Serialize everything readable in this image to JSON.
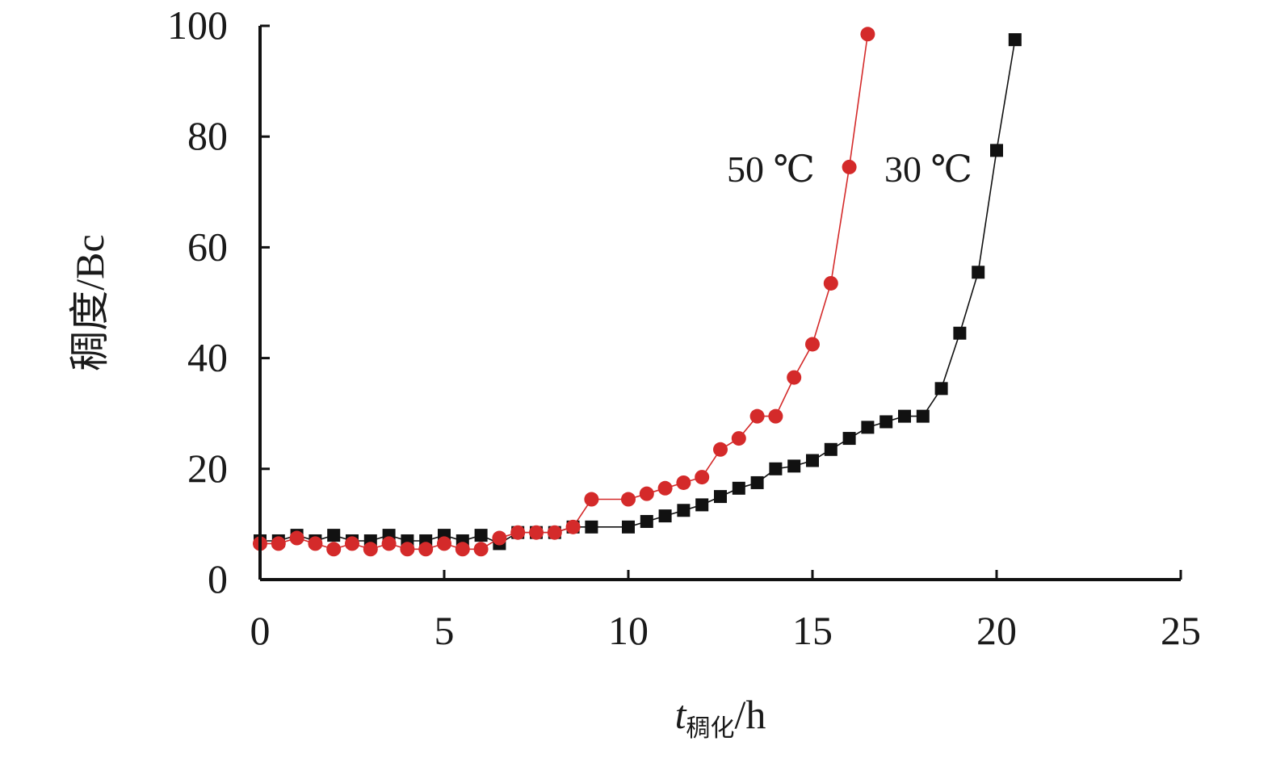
{
  "chart_data": {
    "type": "line",
    "xlabel_main": "t",
    "xlabel_sub": "稠化",
    "xlabel_unit": "/h",
    "ylabel": "稠度/Bc",
    "xlim": [
      0,
      25
    ],
    "ylim": [
      0,
      100
    ],
    "x_ticks": [
      "0",
      "5",
      "10",
      "15",
      "20",
      "25"
    ],
    "y_ticks": [
      "0",
      "20",
      "40",
      "60",
      "80",
      "100"
    ],
    "grid": false,
    "legend": "inline labels near curves",
    "series": [
      {
        "name": "30 ℃",
        "color": "#111111",
        "marker": "square",
        "x": [
          0,
          0.5,
          1,
          1.5,
          2,
          2.5,
          3,
          3.5,
          4,
          4.5,
          5,
          5.5,
          6,
          6.5,
          7,
          7.5,
          8,
          8.5,
          9,
          10,
          10.5,
          11,
          11.5,
          12,
          12.5,
          13,
          13.5,
          14,
          14.5,
          15,
          15.5,
          16,
          16.5,
          17,
          17.5,
          18,
          18.5,
          19,
          19.5,
          20,
          20.5
        ],
        "y": [
          7,
          7,
          8,
          7,
          8,
          7,
          7,
          8,
          7,
          7,
          8,
          7,
          8,
          6.5,
          8.5,
          8.5,
          8.5,
          9.5,
          9.5,
          9.5,
          10.5,
          11.5,
          12.5,
          13.5,
          15,
          16.5,
          17.5,
          20,
          20.5,
          21.5,
          23.5,
          25.5,
          27.5,
          28.5,
          29.5,
          29.5,
          34.5,
          44.5,
          55.5,
          77.5,
          97.5
        ]
      },
      {
        "name": "50 ℃",
        "color": "#d42a2a",
        "marker": "circle",
        "x": [
          0,
          0.5,
          1,
          1.5,
          2,
          2.5,
          3,
          3.5,
          4,
          4.5,
          5,
          5.5,
          6,
          6.5,
          7,
          7.5,
          8,
          8.5,
          9,
          10,
          10.5,
          11,
          11.5,
          12,
          12.5,
          13,
          13.5,
          14,
          14.5,
          15,
          15.5,
          16,
          16.5
        ],
        "y": [
          6.5,
          6.5,
          7.5,
          6.5,
          5.5,
          6.5,
          5.5,
          6.5,
          5.5,
          5.5,
          6.5,
          5.5,
          5.5,
          7.5,
          8.5,
          8.5,
          8.5,
          9.5,
          14.5,
          14.5,
          15.5,
          16.5,
          17.5,
          18.5,
          23.5,
          25.5,
          29.5,
          29.5,
          36.5,
          42.5,
          53.5,
          74.5,
          98.5
        ]
      }
    ]
  }
}
